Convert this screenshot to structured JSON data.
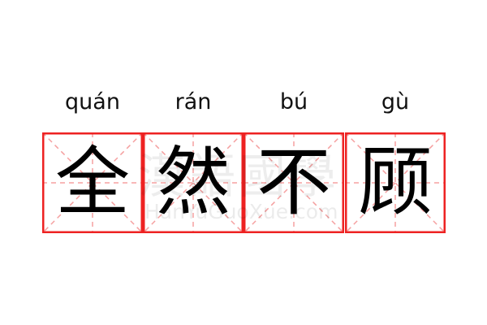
{
  "idiom": {
    "characters": [
      "全",
      "然",
      "不",
      "顾"
    ],
    "pinyin": [
      "quán",
      "rán",
      "bú",
      "gù"
    ]
  },
  "watermark": {
    "text": "漢語國學",
    "url_text": "HanYuGuoXue.com"
  },
  "colors": {
    "border": "#ee2222",
    "guide": "#f5a0a0",
    "text": "#000000"
  }
}
